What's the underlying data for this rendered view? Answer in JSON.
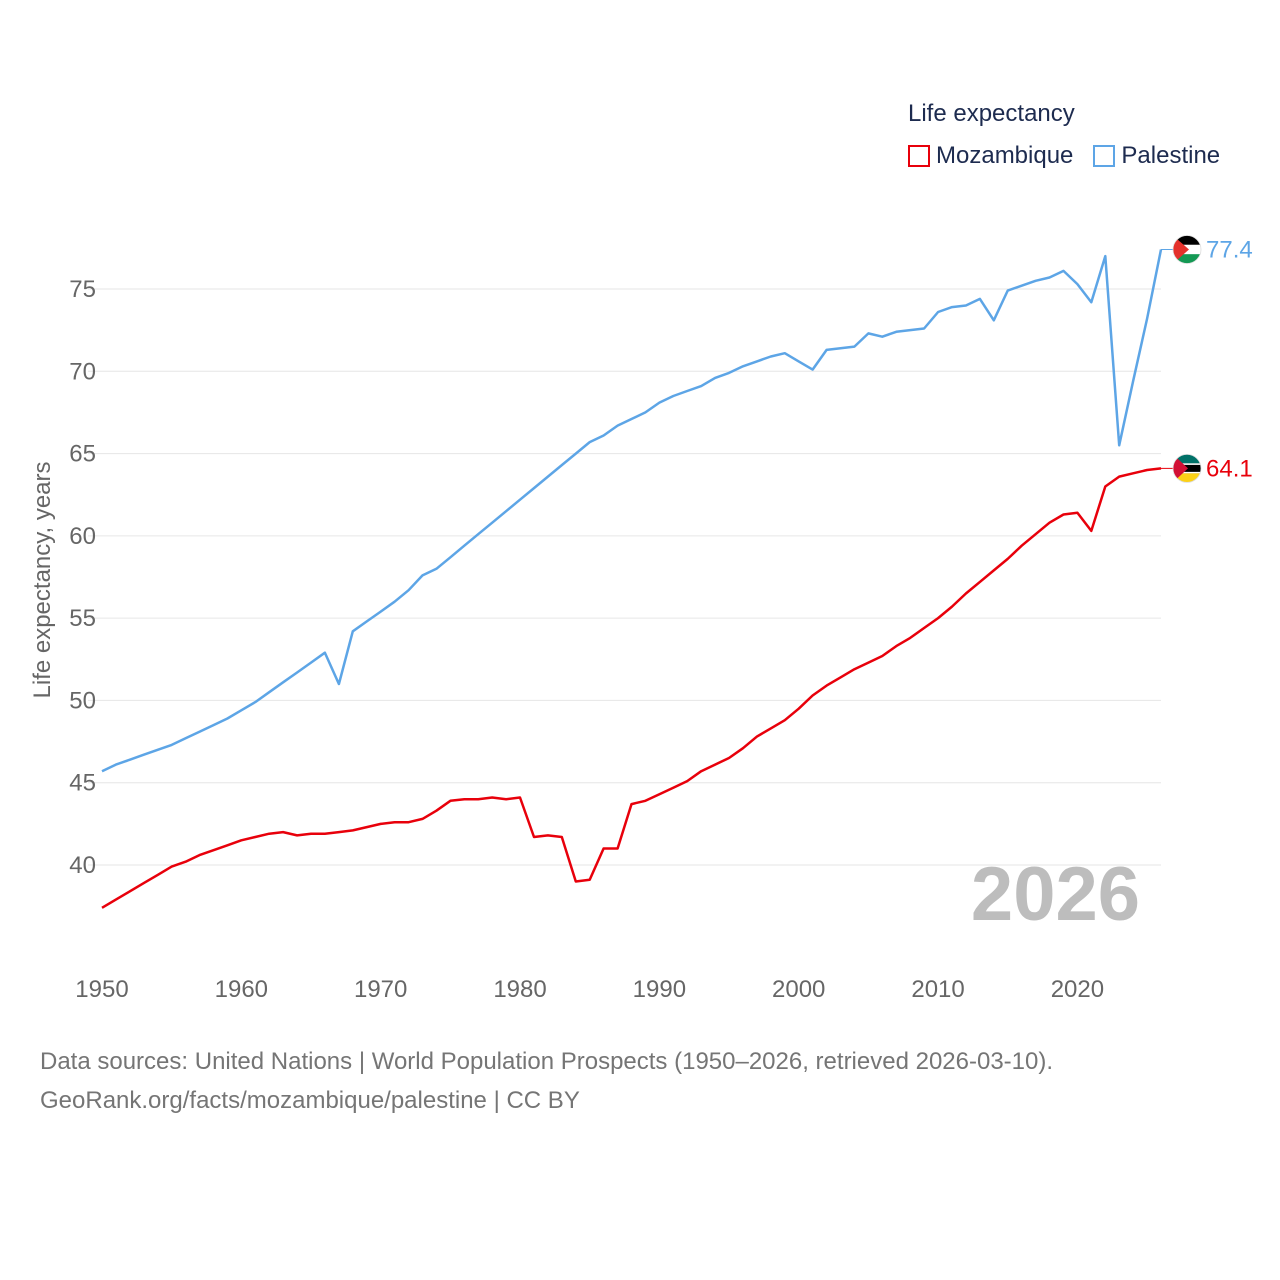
{
  "chart_data": {
    "type": "line",
    "title": "Life expectancy",
    "ylabel": "Life expectancy, years",
    "xlabel": "",
    "xlim": [
      1950,
      2026
    ],
    "ylim": [
      35,
      78
    ],
    "x_ticks": [
      "1950",
      "1960",
      "1970",
      "1980",
      "1990",
      "2000",
      "2010",
      "2020"
    ],
    "y_ticks": [
      "40",
      "45",
      "50",
      "55",
      "60",
      "65",
      "70",
      "75"
    ],
    "year_watermark": "2026",
    "x": [
      1950,
      1951,
      1952,
      1953,
      1954,
      1955,
      1956,
      1957,
      1958,
      1959,
      1960,
      1961,
      1962,
      1963,
      1964,
      1965,
      1966,
      1967,
      1968,
      1969,
      1970,
      1971,
      1972,
      1973,
      1974,
      1975,
      1976,
      1977,
      1978,
      1979,
      1980,
      1981,
      1982,
      1983,
      1984,
      1985,
      1986,
      1987,
      1988,
      1989,
      1990,
      1991,
      1992,
      1993,
      1994,
      1995,
      1996,
      1997,
      1998,
      1999,
      2000,
      2001,
      2002,
      2003,
      2004,
      2005,
      2006,
      2007,
      2008,
      2009,
      2010,
      2011,
      2012,
      2013,
      2014,
      2015,
      2016,
      2017,
      2018,
      2019,
      2020,
      2021,
      2022,
      2023,
      2024,
      2025,
      2026
    ],
    "series": [
      {
        "name": "Mozambique",
        "color": "#e8000b",
        "end_label": "64.1",
        "values": [
          37.4,
          37.9,
          38.4,
          38.9,
          39.4,
          39.9,
          40.2,
          40.6,
          40.9,
          41.2,
          41.5,
          41.7,
          41.9,
          42.0,
          41.8,
          41.9,
          41.9,
          42.0,
          42.1,
          42.3,
          42.5,
          42.6,
          42.6,
          42.8,
          43.3,
          43.9,
          44.0,
          44.0,
          44.1,
          44.0,
          44.1,
          41.7,
          41.8,
          41.7,
          39.0,
          39.1,
          41.0,
          41.0,
          43.7,
          43.9,
          44.3,
          44.7,
          45.1,
          45.7,
          46.1,
          46.5,
          47.1,
          47.8,
          48.3,
          48.8,
          49.5,
          50.3,
          50.9,
          51.4,
          51.9,
          52.3,
          52.7,
          53.3,
          53.8,
          54.4,
          55.0,
          55.7,
          56.5,
          57.2,
          57.9,
          58.6,
          59.4,
          60.1,
          60.8,
          61.3,
          61.4,
          60.3,
          63.0,
          63.6,
          63.8,
          64.0,
          64.1
        ]
      },
      {
        "name": "Palestine",
        "color": "#5da5e6",
        "end_label": "77.4",
        "values": [
          45.7,
          46.1,
          46.4,
          46.7,
          47.0,
          47.3,
          47.7,
          48.1,
          48.5,
          48.9,
          49.4,
          49.9,
          50.5,
          51.1,
          51.7,
          52.3,
          52.9,
          51.0,
          54.2,
          54.8,
          55.4,
          56.0,
          56.7,
          57.6,
          58.0,
          58.7,
          59.4,
          60.1,
          60.8,
          61.5,
          62.2,
          62.9,
          63.6,
          64.3,
          65.0,
          65.7,
          66.1,
          66.7,
          67.1,
          67.5,
          68.1,
          68.5,
          68.8,
          69.1,
          69.6,
          69.9,
          70.3,
          70.6,
          70.9,
          71.1,
          70.6,
          70.1,
          71.3,
          71.4,
          71.5,
          72.3,
          72.1,
          72.4,
          72.5,
          72.6,
          73.6,
          73.9,
          74.0,
          74.4,
          73.1,
          74.9,
          75.2,
          75.5,
          75.7,
          76.1,
          75.3,
          74.2,
          77.0,
          65.5,
          69.4,
          73.2,
          77.4
        ]
      }
    ]
  },
  "source": {
    "line1": "Data sources: United Nations | World Population Prospects (1950–2026, retrieved 2026-03-10).",
    "line2": "GeoRank.org/facts/mozambique/palestine | CC BY"
  }
}
